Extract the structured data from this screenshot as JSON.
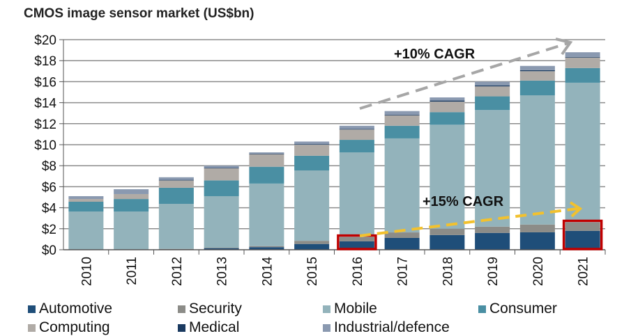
{
  "chart_data": {
    "type": "bar",
    "stacked": true,
    "title": "CMOS image sensor market (US$bn)",
    "xlabel": "",
    "ylabel": "",
    "ylim": [
      0,
      20
    ],
    "yticks": [
      "$0",
      "$2",
      "$4",
      "$6",
      "$8",
      "$10",
      "$12",
      "$14",
      "$16",
      "$18",
      "$20"
    ],
    "grid": true,
    "legend_position": "bottom",
    "categories": [
      "2010",
      "2011",
      "2012",
      "2013",
      "2014",
      "2015",
      "2016",
      "2017",
      "2018",
      "2019",
      "2020",
      "2021"
    ],
    "series": [
      {
        "name": "Automotive",
        "color": "#1f4e79",
        "values": [
          0,
          0,
          0.05,
          0.15,
          0.25,
          0.55,
          0.8,
          1.13,
          1.4,
          1.6,
          1.66,
          1.8
        ]
      },
      {
        "name": "Security",
        "color": "#8c8c88",
        "values": [
          0,
          0,
          0.03,
          0.05,
          0.1,
          0.3,
          0.4,
          0.52,
          0.6,
          0.6,
          0.74,
          0.8
        ]
      },
      {
        "name": "Mobile",
        "color": "#93b3bb",
        "values": [
          3.64,
          3.64,
          4.29,
          4.9,
          5.95,
          6.7,
          8.07,
          8.95,
          9.9,
          11.1,
          12.3,
          13.3
        ]
      },
      {
        "name": "Consumer",
        "color": "#4a8fa3",
        "values": [
          0.93,
          1.19,
          1.53,
          1.5,
          1.6,
          1.4,
          1.19,
          1.2,
          1.2,
          1.3,
          1.4,
          1.4
        ]
      },
      {
        "name": "Computing",
        "color": "#b0aba6",
        "values": [
          0.26,
          0.47,
          0.7,
          1.15,
          1.2,
          1.05,
          0.99,
          1.0,
          1.0,
          0.95,
          0.9,
          1.0
        ]
      },
      {
        "name": "Medical",
        "color": "#1a3a60",
        "values": [
          0,
          0,
          0.05,
          0.05,
          0.05,
          0.05,
          0.05,
          0.05,
          0.1,
          0.1,
          0.1,
          0.05
        ]
      },
      {
        "name": "Industrial/defence",
        "color": "#8a99b0",
        "values": [
          0.27,
          0.46,
          0.25,
          0.2,
          0.12,
          0.25,
          0.3,
          0.35,
          0.3,
          0.35,
          0.4,
          0.45
        ]
      }
    ],
    "annotations": [
      {
        "text": "+10% CAGR",
        "color": "#a6a6a6",
        "from": "2016",
        "to": "2021"
      },
      {
        "text": "+15% CAGR",
        "color": "#f2c12e",
        "from": "2016",
        "to": "2021"
      }
    ],
    "highlight_color": "#c00000",
    "highlighted": [
      "2016 Automotive+Security",
      "2021 Automotive+Security"
    ]
  }
}
